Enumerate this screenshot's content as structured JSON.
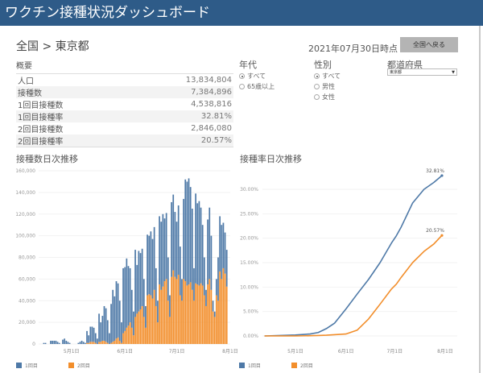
{
  "header": {
    "title": "ワクチン接種状況ダッシュボード"
  },
  "breadcrumb": "全国 > 東京都",
  "as_of": "2021年07月30日時点",
  "back_button": "全国へ戻る",
  "summary": {
    "title": "概要",
    "rows": [
      {
        "label": "人口",
        "value": "13,834,804"
      },
      {
        "label": "接種数",
        "value": "7,384,896"
      },
      {
        "label": "1回目接種数",
        "value": "4,538,816"
      },
      {
        "label": "1回目接種率",
        "value": "32.81%"
      },
      {
        "label": "2回目接種数",
        "value": "2,846,080"
      },
      {
        "label": "2回目接種率",
        "value": "20.57%"
      }
    ]
  },
  "filters": {
    "age": {
      "label": "年代",
      "options": [
        "すべて",
        "65歳以上"
      ],
      "selected": 0
    },
    "sex": {
      "label": "性別",
      "options": [
        "すべて",
        "男性",
        "女性"
      ],
      "selected": 0
    },
    "pref": {
      "label": "都道府県",
      "value": "東京都"
    }
  },
  "colors": {
    "dose1": "#4e79a7",
    "dose2": "#f28e2b",
    "header": "#2e5b88"
  },
  "chart_data": [
    {
      "type": "bar",
      "stacked": true,
      "title": "接種数日次推移",
      "start_date": "2021-04-12",
      "x_ticks": [
        "5月1日",
        "6月1日",
        "7月1日",
        "8月1日"
      ],
      "y_ticks": [
        "0",
        "20,000",
        "40,000",
        "60,000",
        "80,000",
        "100,000",
        "120,000",
        "140,000",
        "160,000"
      ],
      "ylim": [
        0,
        160000
      ],
      "series": [
        {
          "name": "1回目",
          "values": [
            0,
            0,
            0,
            1000,
            1000,
            0,
            0,
            3000,
            3000,
            3000,
            3000,
            2000,
            1000,
            0,
            4000,
            5000,
            3000,
            2000,
            1000,
            0,
            0,
            0,
            0,
            1000,
            2000,
            3000,
            2000,
            1000,
            11000,
            7000,
            14000,
            14000,
            13000,
            9000,
            5000,
            26000,
            18000,
            23000,
            32000,
            31000,
            21000,
            10000,
            36000,
            48000,
            41000,
            53000,
            50000,
            37000,
            19000,
            60000,
            59000,
            64000,
            55000,
            50000,
            35000,
            22000,
            62000,
            45000,
            56000,
            52000,
            53000,
            35000,
            20000,
            56000,
            54000,
            59000,
            55000,
            58000,
            35000,
            20000,
            63000,
            63000,
            67000,
            58000,
            61000,
            40000,
            20000,
            69000,
            70000,
            60000,
            53000,
            64000,
            45000,
            20000,
            74000,
            94000,
            96000,
            98000,
            88000,
            75000,
            30000,
            83000,
            75000,
            78000,
            70000,
            56000,
            35000,
            15000,
            60000,
            66000,
            50000,
            10000,
            5000,
            15000,
            40000,
            51000,
            50000,
            42000,
            38000,
            34000
          ]
        },
        {
          "name": "2回目",
          "values": [
            0,
            0,
            0,
            0,
            0,
            0,
            0,
            0,
            0,
            0,
            0,
            0,
            0,
            0,
            0,
            0,
            0,
            0,
            0,
            0,
            0,
            0,
            0,
            0,
            0,
            0,
            0,
            0,
            1000,
            1000,
            2000,
            2000,
            2000,
            1000,
            0,
            2000,
            2000,
            3000,
            3000,
            2000,
            1000,
            0,
            1000,
            2000,
            3000,
            5000,
            6000,
            3000,
            1000,
            10000,
            12000,
            15000,
            17000,
            20000,
            15000,
            8000,
            25000,
            28000,
            30000,
            32000,
            35000,
            25000,
            15000,
            45000,
            46000,
            45000,
            42000,
            50000,
            35000,
            20000,
            55000,
            50000,
            53000,
            58000,
            60000,
            40000,
            25000,
            62000,
            68000,
            62000,
            60000,
            64000,
            45000,
            40000,
            60000,
            58000,
            54000,
            55000,
            57000,
            50000,
            40000,
            56000,
            55000,
            54000,
            56000,
            54000,
            45000,
            35000,
            55000,
            60000,
            50000,
            30000,
            25000,
            45000,
            40000,
            67000,
            60000,
            70000,
            65000,
            53000
          ]
        }
      ]
    },
    {
      "type": "line",
      "title": "接種率日次推移",
      "y_ticks": [
        "0.00%",
        "5.00%",
        "10.00%",
        "15.00%",
        "20.00%",
        "25.00%",
        "30.00%"
      ],
      "ylim": [
        0,
        35
      ],
      "x_ticks": [
        "5月1日",
        "6月1日",
        "7月1日",
        "8月1日"
      ],
      "x": [
        "2021-04-12",
        "2021-05-01",
        "2021-05-10",
        "2021-05-15",
        "2021-05-20",
        "2021-05-25",
        "2021-06-01",
        "2021-06-08",
        "2021-06-15",
        "2021-06-22",
        "2021-06-29",
        "2021-07-02",
        "2021-07-05",
        "2021-07-12",
        "2021-07-19",
        "2021-07-25",
        "2021-07-30"
      ],
      "series": [
        {
          "name": "1回目",
          "values": [
            0,
            0.2,
            0.4,
            0.7,
            1.5,
            2.6,
            5.5,
            8.6,
            11.6,
            15.0,
            19.0,
            20.5,
            22.3,
            27.2,
            30.0,
            31.4,
            32.81
          ],
          "end_label": "32.81%"
        },
        {
          "name": "2回目",
          "values": [
            0,
            0,
            0.05,
            0.1,
            0.15,
            0.25,
            0.4,
            1.2,
            3.5,
            6.5,
            9.6,
            10.6,
            12.0,
            15.0,
            17.3,
            18.8,
            20.57
          ],
          "end_label": "20.57%"
        }
      ]
    }
  ]
}
